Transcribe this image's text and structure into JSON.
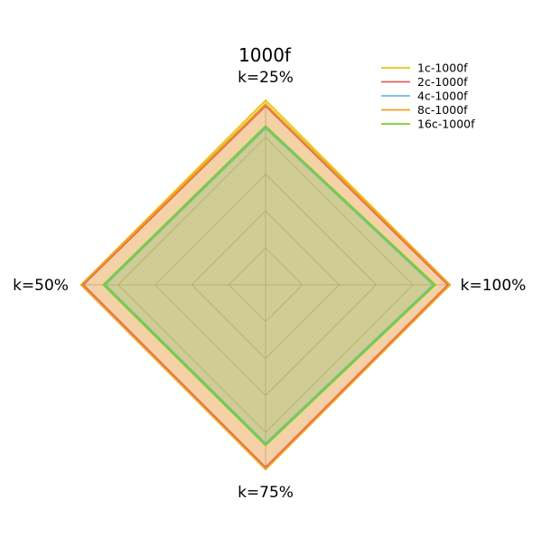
{
  "chart_data": {
    "type": "radar",
    "title": "1000f",
    "axes": [
      "k=25%",
      "k=100%",
      "k=75%",
      "k=50%"
    ],
    "rmax": 1.0,
    "grid": true,
    "legend_position": "top-right",
    "series": [
      {
        "name": "1c-1000f",
        "color": "#e6c619",
        "values": [
          1.0,
          1.0,
          1.0,
          1.0
        ]
      },
      {
        "name": "2c-1000f",
        "color": "#e0605a",
        "values": [
          0.97,
          0.99,
          0.99,
          0.99
        ]
      },
      {
        "name": "4c-1000f",
        "color": "#6ebcd9",
        "values": [
          0.85,
          0.91,
          0.86,
          0.87
        ]
      },
      {
        "name": "8c-1000f",
        "color": "#f0a020",
        "values": [
          0.98,
          1.0,
          1.0,
          1.0
        ]
      },
      {
        "name": "16c-1000f",
        "color": "#77d02a",
        "values": [
          0.86,
          0.92,
          0.87,
          0.88
        ]
      }
    ]
  }
}
